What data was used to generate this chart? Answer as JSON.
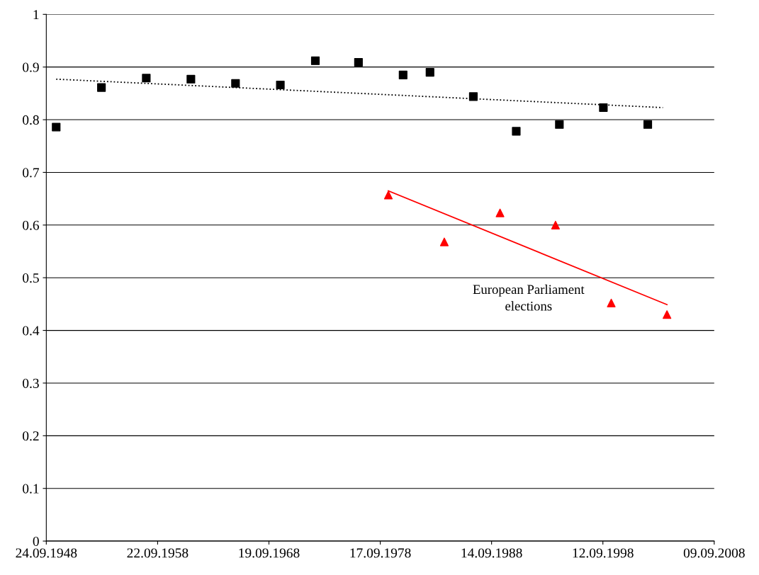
{
  "chart_data": {
    "type": "scatter",
    "series": [
      {
        "color": "#000000",
        "marker": "square",
        "x": [
          "1949-08-14",
          "1953-09-06",
          "1957-09-15",
          "1961-09-17",
          "1965-09-19",
          "1969-09-28",
          "1972-11-19",
          "1976-10-03",
          "1980-10-05",
          "1983-03-06",
          "1987-01-25",
          "1990-12-02",
          "1994-10-16",
          "1998-09-27",
          "2002-09-22"
        ],
        "values": [
          0.786,
          0.861,
          0.879,
          0.877,
          0.869,
          0.866,
          0.912,
          0.909,
          0.885,
          0.89,
          0.844,
          0.778,
          0.791,
          0.823,
          0.791
        ]
      },
      {
        "color": "#ff0000",
        "marker": "triangle",
        "x": [
          "1979-06-10",
          "1984-06-17",
          "1989-06-18",
          "1994-06-12",
          "1999-06-13",
          "2004-06-13"
        ],
        "values": [
          0.657,
          0.568,
          0.623,
          0.6,
          0.452,
          0.43
        ]
      },
      {
        "type": "line",
        "color": "#000000",
        "line_style": "dotted",
        "x": [
          "1949-08-14",
          "2004-02-01"
        ],
        "values": [
          0.877,
          0.823
        ]
      },
      {
        "type": "line",
        "color": "#ff0000",
        "line_style": "solid",
        "x": [
          "1979-06-10",
          "2004-06-13"
        ],
        "values": [
          0.665,
          0.449
        ]
      }
    ],
    "annotations": [
      "European Parliament\nelections"
    ],
    "xlim": [
      "1948-09-24",
      "2008-09-09"
    ],
    "xticks": [
      {
        "value": "1948-09-24",
        "label": "24.09.1948"
      },
      {
        "value": "1958-09-22",
        "label": "22.09.1958"
      },
      {
        "value": "1968-09-19",
        "label": "19.09.1968"
      },
      {
        "value": "1978-09-17",
        "label": "17.09.1978"
      },
      {
        "value": "1988-09-14",
        "label": "14.09.1988"
      },
      {
        "value": "1998-09-12",
        "label": "12.09.1998"
      },
      {
        "value": "2008-09-09",
        "label": "09.09.2008"
      }
    ],
    "ylim": [
      0,
      1
    ],
    "yticks": [
      0,
      0.1,
      0.2,
      0.3,
      0.4,
      0.5,
      0.6,
      0.7,
      0.8,
      0.9,
      1
    ],
    "grid": "y"
  }
}
